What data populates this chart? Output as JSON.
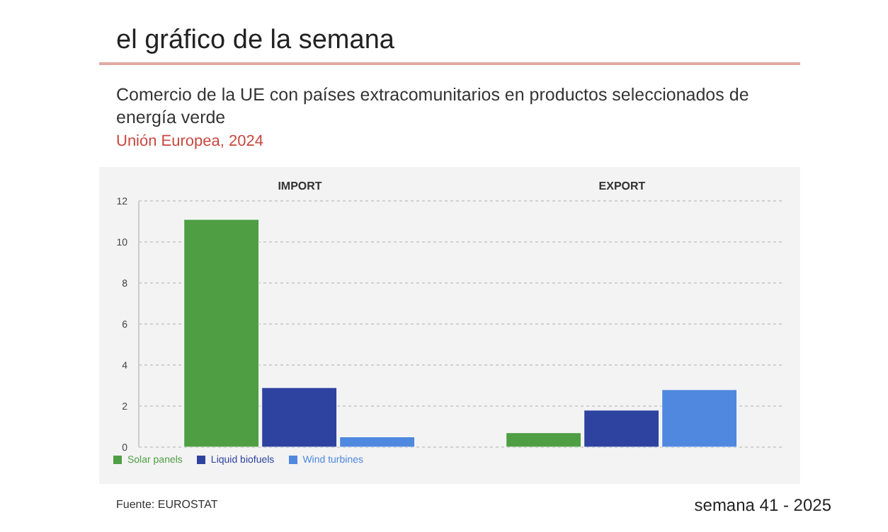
{
  "chart_data": {
    "type": "bar",
    "title": "Comercio de la UE con países extracomunitarios en productos seleccionados de energía verde",
    "subtitle": "Unión Europea, 2024",
    "annotations": [
      "el gráfico de la semana",
      "Fuente: EUROSTAT",
      "semana 41 - 2025"
    ],
    "categories": [
      "IMPORT",
      "EXPORT"
    ],
    "series": [
      {
        "name": "Solar panels",
        "color": "#4f9e44",
        "values": [
          11.1,
          0.7
        ]
      },
      {
        "name": "Liquid biofuels",
        "color": "#2e43a0",
        "values": [
          2.9,
          1.8
        ]
      },
      {
        "name": "Wind turbines",
        "color": "#4f88de",
        "values": [
          0.5,
          2.8
        ]
      }
    ],
    "ylim": [
      0,
      12
    ],
    "yticks": [
      0,
      2,
      4,
      6,
      8,
      10,
      12
    ],
    "grid": "y",
    "legend": "bottom left"
  }
}
